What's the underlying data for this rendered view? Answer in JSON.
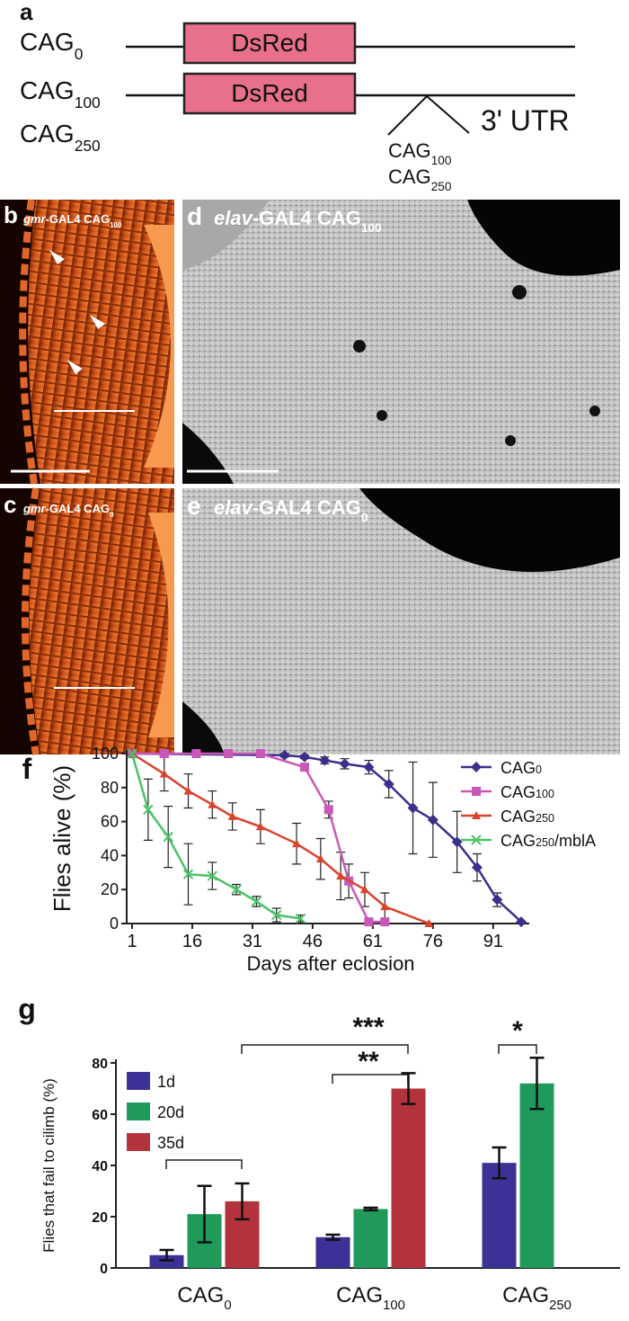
{
  "panel_a": {
    "label": "a",
    "constructs": [
      "CAG0",
      "CAG100",
      "CAG250"
    ],
    "reporter": [
      "DsRed",
      "DsRed"
    ],
    "utr": "3' UTR",
    "inserts": [
      "CAG100",
      "CAG250"
    ]
  },
  "images": [
    {
      "label": "b",
      "caption": "gmr-GAL4 CAG100"
    },
    {
      "label": "d",
      "caption": "elav-GAL4 CAG100"
    },
    {
      "label": "c",
      "caption": "gmr-GAL4 CAG0"
    },
    {
      "label": "e",
      "caption": "elav-GAL4 CAG0"
    }
  ],
  "chart_data": [
    {
      "type": "line",
      "panel_label": "f",
      "ylabel": "Flies alive (%)",
      "xlabel": "Days after eclosion",
      "xlim": [
        1,
        100
      ],
      "xticks": [
        1,
        16,
        31,
        46,
        61,
        76,
        91
      ],
      "ylim": [
        0,
        100
      ],
      "yticks": [
        0,
        20,
        40,
        60,
        80,
        100
      ],
      "legend": "upper right",
      "series": [
        {
          "name": "CAG0",
          "color": "#3b2f8c",
          "marker": "diamond",
          "x": [
            1,
            39,
            44,
            49,
            54,
            60,
            65,
            71,
            76,
            82,
            87,
            92,
            98
          ],
          "values": [
            100,
            99,
            98,
            96,
            94,
            92,
            82,
            68,
            61,
            48,
            33,
            14,
            1
          ],
          "errors": [
            0,
            1,
            1,
            2,
            3,
            4,
            8,
            27,
            22,
            18,
            8,
            4,
            0
          ]
        },
        {
          "name": "CAG100",
          "color": "#c957b8",
          "marker": "square",
          "x": [
            1,
            9,
            17,
            25,
            33,
            44,
            50,
            55,
            60,
            64
          ],
          "values": [
            100,
            100,
            100,
            100,
            100,
            92,
            67,
            25,
            1,
            1
          ],
          "errors": [
            0,
            0,
            0,
            0,
            0,
            2,
            5,
            10,
            0,
            0
          ]
        },
        {
          "name": "CAG250",
          "color": "#d9432c",
          "marker": "triangle",
          "x": [
            1,
            9,
            15,
            21,
            26,
            33,
            42,
            48,
            53,
            59,
            64,
            75
          ],
          "values": [
            100,
            88,
            78,
            70,
            63,
            57,
            47,
            38,
            28,
            20,
            10,
            0
          ],
          "errors": [
            0,
            10,
            10,
            8,
            8,
            10,
            12,
            12,
            14,
            10,
            8,
            0
          ]
        },
        {
          "name": "CAG250/mblA",
          "color": "#4cc26a",
          "marker": "x",
          "x": [
            1,
            5,
            10,
            15,
            21,
            27,
            32,
            37,
            43
          ],
          "values": [
            100,
            67,
            51,
            29,
            28,
            20,
            13,
            5,
            3
          ],
          "errors": [
            0,
            18,
            18,
            18,
            8,
            3,
            3,
            4,
            2
          ]
        }
      ]
    },
    {
      "type": "bar",
      "panel_label": "g",
      "ylabel": "Flies that fail to cilimb (%)",
      "categories": [
        "CAG0",
        "CAG100",
        "CAG250"
      ],
      "ylim": [
        0,
        80
      ],
      "yticks": [
        0,
        20,
        40,
        60,
        80
      ],
      "legend": "upper left",
      "annotations": [
        "***",
        "**",
        "*"
      ],
      "series": [
        {
          "name": "1d",
          "color": "#3b3196",
          "values": [
            5,
            12,
            41
          ],
          "errors": [
            2,
            1,
            6
          ]
        },
        {
          "name": "20d",
          "color": "#1f9a5b",
          "values": [
            21,
            23,
            72
          ],
          "errors": [
            11,
            0.5,
            10
          ]
        },
        {
          "name": "35d",
          "color": "#b3333c",
          "values": [
            26,
            70,
            null
          ],
          "errors": [
            7,
            6,
            null
          ]
        }
      ]
    }
  ]
}
